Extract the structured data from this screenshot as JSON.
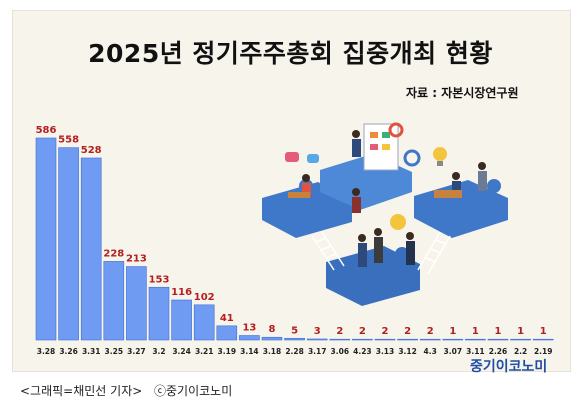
{
  "title": "2025년 정기주주총회 집중개최 현황",
  "source": "자료 : 자본시장연구원",
  "brand": "중기이코노미",
  "caption": "<그래픽=채민선 기자>",
  "copyright": "ⓒ중기이코노미",
  "colors": {
    "bar_fill": "#6f9bf2",
    "bar_edge": "#3f6fd6",
    "value_label": "#b31f1f",
    "background": "#f7f4ec",
    "brand": "#1f4ea3"
  },
  "chart_data": {
    "type": "bar",
    "title": "2025년 정기주주총회 집중개최 현황",
    "xlabel": "",
    "ylabel": "",
    "categories": [
      "3.28",
      "3.26",
      "3.31",
      "3.25",
      "3.27",
      "3.2",
      "3.24",
      "3.21",
      "3.19",
      "3.14",
      "3.18",
      "2.28",
      "3.17",
      "3.06",
      "4.23",
      "3.13",
      "3.12",
      "4.3",
      "3.07",
      "3.11",
      "2.26",
      "2.2",
      "2.19"
    ],
    "values": [
      586,
      558,
      528,
      228,
      213,
      153,
      116,
      102,
      41,
      13,
      8,
      5,
      3,
      2,
      2,
      2,
      2,
      2,
      1,
      1,
      1,
      1,
      1
    ],
    "ylim": [
      0,
      586
    ],
    "grid": false,
    "legend": "none"
  }
}
